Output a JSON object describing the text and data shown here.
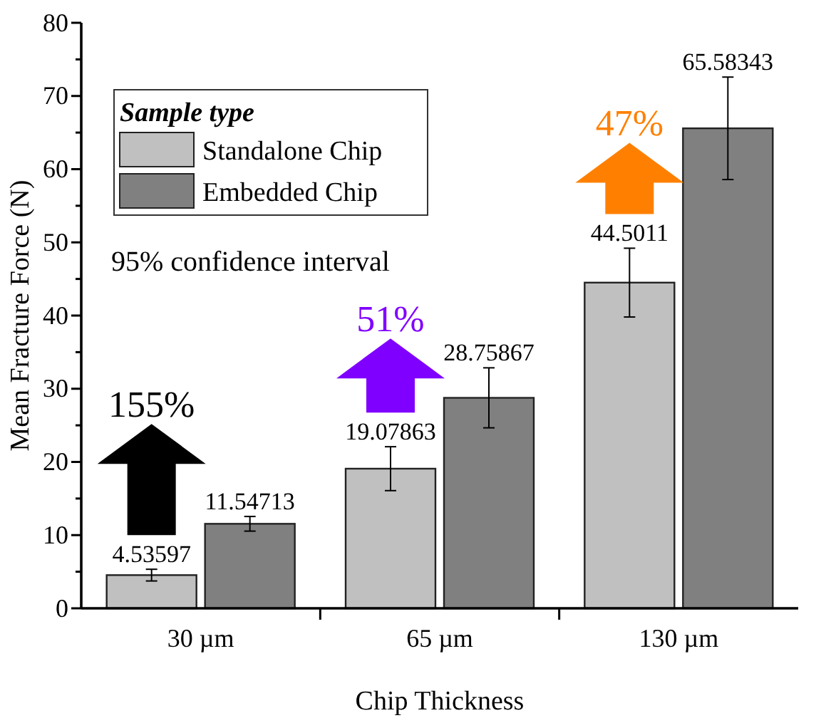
{
  "chart_data": {
    "type": "bar",
    "xlabel": "Chip Thickness",
    "ylabel": "Mean Fracture Force (N)",
    "legend_title": "Sample type",
    "legend": "top left",
    "categories": [
      "30 µm",
      "65 µm",
      "130 µm"
    ],
    "series": [
      {
        "name": "Standalone Chip",
        "color": "#c0c0c0",
        "values": [
          4.53597,
          19.07863,
          44.5011
        ],
        "errors": [
          0.8,
          3.0,
          4.7
        ]
      },
      {
        "name": "Embedded Chip",
        "color": "#808080",
        "values": [
          11.54713,
          28.75867,
          65.58343
        ],
        "errors": [
          1.0,
          4.1,
          7.0
        ]
      }
    ],
    "data_labels": true,
    "ylim": [
      0,
      80
    ],
    "yticks": [
      0,
      {
        "value": 5,
        "label": null
      },
      10,
      {
        "value": 15,
        "label": null
      },
      20,
      {
        "value": 25,
        "label": null
      },
      30,
      {
        "value": 35,
        "label": null
      },
      40,
      {
        "value": 45,
        "label": null
      },
      50,
      {
        "value": 55,
        "label": null
      },
      60,
      {
        "value": 65,
        "label": null
      },
      70,
      {
        "value": 75,
        "label": null
      },
      80
    ],
    "grid": false,
    "annotations": [
      "95% confidence interval",
      "155%",
      "51%",
      "47%"
    ]
  }
}
